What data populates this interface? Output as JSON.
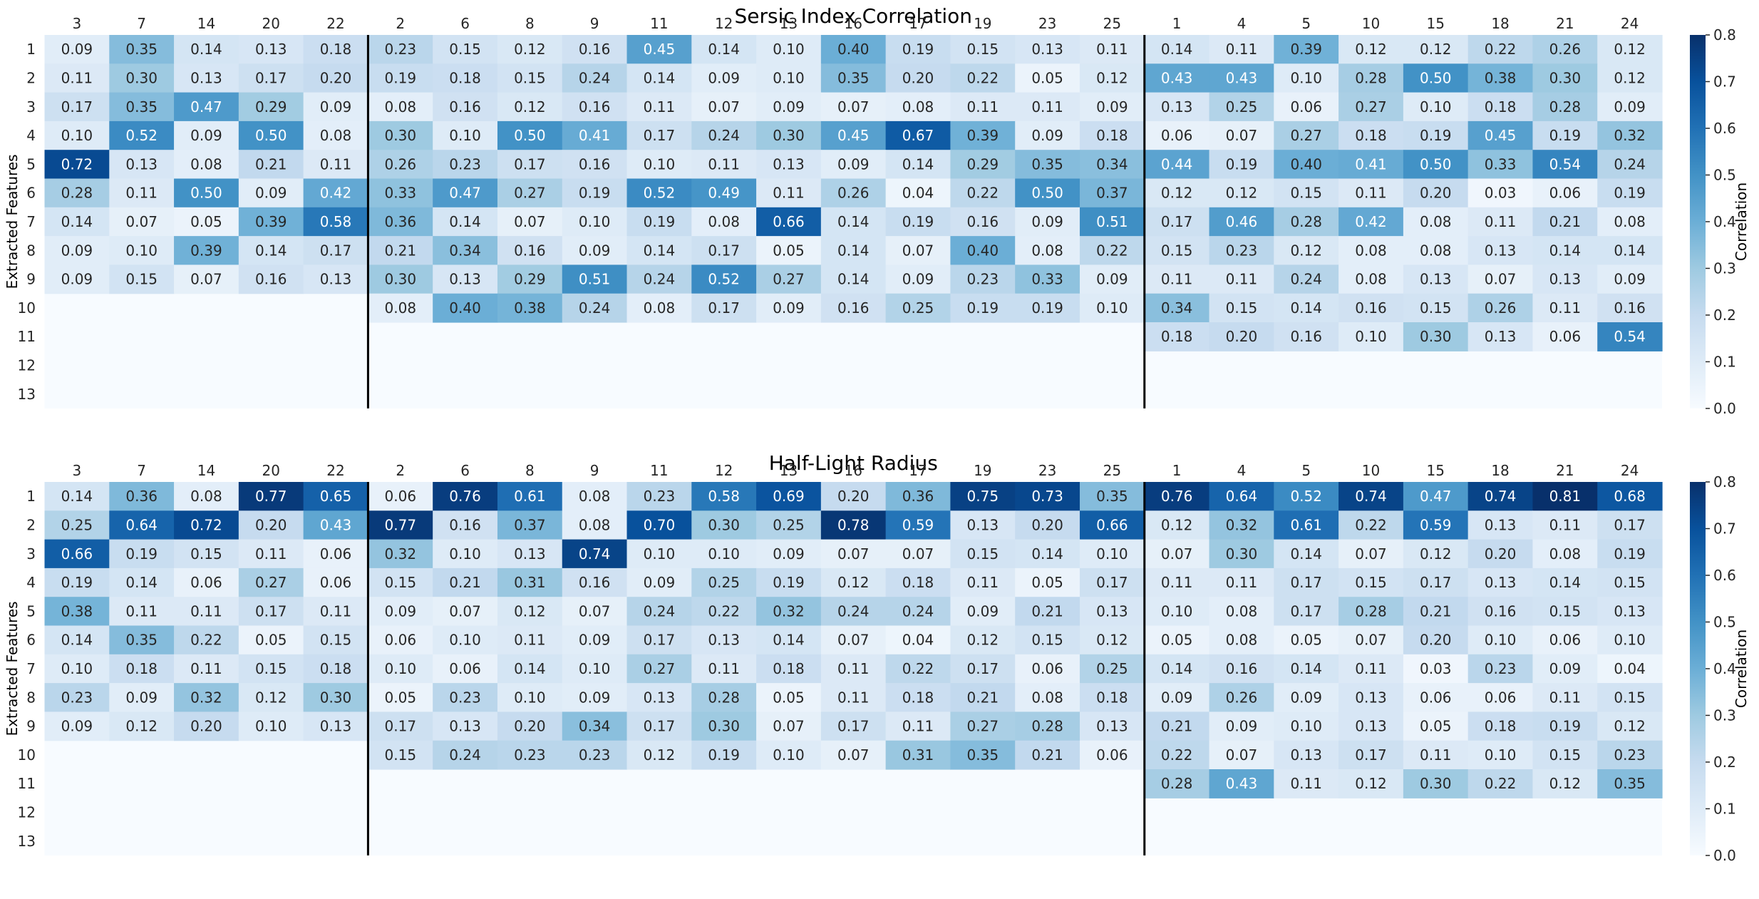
{
  "chart_data": [
    {
      "type": "heatmap",
      "title": "Sersic Index Correlation",
      "ylabel": "Extracted Features",
      "colorbar_label": "Correlation",
      "vmin": 0.0,
      "vmax": 0.8,
      "colorbar_ticks": [
        "0.0",
        "0.1",
        "0.2",
        "0.3",
        "0.4",
        "0.5",
        "0.6",
        "0.7",
        "0.8"
      ],
      "columns": [
        "3",
        "7",
        "14",
        "20",
        "22",
        "2",
        "6",
        "8",
        "9",
        "11",
        "12",
        "13",
        "16",
        "17",
        "19",
        "23",
        "25",
        "1",
        "4",
        "5",
        "10",
        "15",
        "18",
        "21",
        "24"
      ],
      "rows": [
        "1",
        "2",
        "3",
        "4",
        "5",
        "6",
        "7",
        "8",
        "9",
        "10",
        "11",
        "12",
        "13"
      ],
      "group_dividers_after_column": [
        4,
        16
      ],
      "values": [
        [
          0.09,
          0.35,
          0.14,
          0.13,
          0.18,
          0.23,
          0.15,
          0.12,
          0.16,
          0.45,
          0.14,
          0.1,
          0.4,
          0.19,
          0.15,
          0.13,
          0.11,
          0.14,
          0.11,
          0.39,
          0.12,
          0.12,
          0.22,
          0.26,
          0.12
        ],
        [
          0.11,
          0.3,
          0.13,
          0.17,
          0.2,
          0.19,
          0.18,
          0.15,
          0.24,
          0.14,
          0.09,
          0.1,
          0.35,
          0.2,
          0.22,
          0.05,
          0.12,
          0.43,
          0.43,
          0.1,
          0.28,
          0.5,
          0.38,
          0.3,
          0.12
        ],
        [
          0.17,
          0.35,
          0.47,
          0.29,
          0.09,
          0.08,
          0.16,
          0.12,
          0.16,
          0.11,
          0.07,
          0.09,
          0.07,
          0.08,
          0.11,
          0.11,
          0.09,
          0.13,
          0.25,
          0.06,
          0.27,
          0.1,
          0.18,
          0.28,
          0.09
        ],
        [
          0.1,
          0.52,
          0.09,
          0.5,
          0.08,
          0.3,
          0.1,
          0.5,
          0.41,
          0.17,
          0.24,
          0.3,
          0.45,
          0.67,
          0.39,
          0.09,
          0.18,
          0.06,
          0.07,
          0.27,
          0.18,
          0.19,
          0.45,
          0.19,
          0.32
        ],
        [
          0.72,
          0.13,
          0.08,
          0.21,
          0.11,
          0.26,
          0.23,
          0.17,
          0.16,
          0.1,
          0.11,
          0.13,
          0.09,
          0.14,
          0.29,
          0.35,
          0.34,
          0.44,
          0.19,
          0.4,
          0.41,
          0.5,
          0.33,
          0.54,
          0.24
        ],
        [
          0.28,
          0.11,
          0.5,
          0.09,
          0.42,
          0.33,
          0.47,
          0.27,
          0.19,
          0.52,
          0.49,
          0.11,
          0.26,
          0.04,
          0.22,
          0.5,
          0.37,
          0.12,
          0.12,
          0.15,
          0.11,
          0.2,
          0.03,
          0.06,
          0.19
        ],
        [
          0.14,
          0.07,
          0.05,
          0.39,
          0.58,
          0.36,
          0.14,
          0.07,
          0.1,
          0.19,
          0.08,
          0.66,
          0.14,
          0.19,
          0.16,
          0.09,
          0.51,
          0.17,
          0.46,
          0.28,
          0.42,
          0.08,
          0.11,
          0.21,
          0.08
        ],
        [
          0.09,
          0.1,
          0.39,
          0.14,
          0.17,
          0.21,
          0.34,
          0.16,
          0.09,
          0.14,
          0.17,
          0.05,
          0.14,
          0.07,
          0.4,
          0.08,
          0.22,
          0.15,
          0.23,
          0.12,
          0.08,
          0.08,
          0.13,
          0.14,
          0.14
        ],
        [
          0.09,
          0.15,
          0.07,
          0.16,
          0.13,
          0.3,
          0.13,
          0.29,
          0.51,
          0.24,
          0.52,
          0.27,
          0.14,
          0.09,
          0.23,
          0.33,
          0.09,
          0.11,
          0.11,
          0.24,
          0.08,
          0.13,
          0.07,
          0.13,
          0.09
        ],
        [
          null,
          null,
          null,
          null,
          null,
          0.08,
          0.4,
          0.38,
          0.24,
          0.08,
          0.17,
          0.09,
          0.16,
          0.25,
          0.19,
          0.19,
          0.1,
          0.34,
          0.15,
          0.14,
          0.16,
          0.15,
          0.26,
          0.11,
          0.16
        ],
        [
          null,
          null,
          null,
          null,
          null,
          null,
          null,
          null,
          null,
          null,
          null,
          null,
          null,
          null,
          null,
          null,
          null,
          0.18,
          0.2,
          0.16,
          0.1,
          0.3,
          0.13,
          0.06,
          0.54
        ],
        [
          null,
          null,
          null,
          null,
          null,
          null,
          null,
          null,
          null,
          null,
          null,
          null,
          null,
          null,
          null,
          null,
          null,
          null,
          null,
          null,
          null,
          null,
          null,
          null,
          null
        ],
        [
          null,
          null,
          null,
          null,
          null,
          null,
          null,
          null,
          null,
          null,
          null,
          null,
          null,
          null,
          null,
          null,
          null,
          null,
          null,
          null,
          null,
          null,
          null,
          null,
          null
        ]
      ]
    },
    {
      "type": "heatmap",
      "title": "Half-Light Radius",
      "ylabel": "Extracted Features",
      "colorbar_label": "Correlation",
      "vmin": 0.0,
      "vmax": 0.8,
      "colorbar_ticks": [
        "0.0",
        "0.1",
        "0.2",
        "0.3",
        "0.4",
        "0.5",
        "0.6",
        "0.7",
        "0.8"
      ],
      "columns": [
        "3",
        "7",
        "14",
        "20",
        "22",
        "2",
        "6",
        "8",
        "9",
        "11",
        "12",
        "13",
        "16",
        "17",
        "19",
        "23",
        "25",
        "1",
        "4",
        "5",
        "10",
        "15",
        "18",
        "21",
        "24"
      ],
      "rows": [
        "1",
        "2",
        "3",
        "4",
        "5",
        "6",
        "7",
        "8",
        "9",
        "10",
        "11",
        "12",
        "13"
      ],
      "group_dividers_after_column": [
        4,
        16
      ],
      "values": [
        [
          0.14,
          0.36,
          0.08,
          0.77,
          0.65,
          0.06,
          0.76,
          0.61,
          0.08,
          0.23,
          0.58,
          0.69,
          0.2,
          0.36,
          0.75,
          0.73,
          0.35,
          0.76,
          0.64,
          0.52,
          0.74,
          0.47,
          0.74,
          0.81,
          0.68
        ],
        [
          0.25,
          0.64,
          0.72,
          0.2,
          0.43,
          0.77,
          0.16,
          0.37,
          0.08,
          0.7,
          0.3,
          0.25,
          0.78,
          0.59,
          0.13,
          0.2,
          0.66,
          0.12,
          0.32,
          0.61,
          0.22,
          0.59,
          0.13,
          0.11,
          0.17
        ],
        [
          0.66,
          0.19,
          0.15,
          0.11,
          0.06,
          0.32,
          0.1,
          0.13,
          0.74,
          0.1,
          0.1,
          0.09,
          0.07,
          0.07,
          0.15,
          0.14,
          0.1,
          0.07,
          0.3,
          0.14,
          0.07,
          0.12,
          0.2,
          0.08,
          0.19
        ],
        [
          0.19,
          0.14,
          0.06,
          0.27,
          0.06,
          0.15,
          0.21,
          0.31,
          0.16,
          0.09,
          0.25,
          0.19,
          0.12,
          0.18,
          0.11,
          0.05,
          0.17,
          0.11,
          0.11,
          0.17,
          0.15,
          0.17,
          0.13,
          0.14,
          0.15
        ],
        [
          0.38,
          0.11,
          0.11,
          0.17,
          0.11,
          0.09,
          0.07,
          0.12,
          0.07,
          0.24,
          0.22,
          0.32,
          0.24,
          0.24,
          0.09,
          0.21,
          0.13,
          0.1,
          0.08,
          0.17,
          0.28,
          0.21,
          0.16,
          0.15,
          0.13
        ],
        [
          0.14,
          0.35,
          0.22,
          0.05,
          0.15,
          0.06,
          0.1,
          0.11,
          0.09,
          0.17,
          0.13,
          0.14,
          0.07,
          0.04,
          0.12,
          0.15,
          0.12,
          0.05,
          0.08,
          0.05,
          0.07,
          0.2,
          0.1,
          0.06,
          0.1
        ],
        [
          0.1,
          0.18,
          0.11,
          0.15,
          0.18,
          0.1,
          0.06,
          0.14,
          0.1,
          0.27,
          0.11,
          0.18,
          0.11,
          0.22,
          0.17,
          0.06,
          0.25,
          0.14,
          0.16,
          0.14,
          0.11,
          0.03,
          0.23,
          0.09,
          0.04
        ],
        [
          0.23,
          0.09,
          0.32,
          0.12,
          0.3,
          0.05,
          0.23,
          0.1,
          0.09,
          0.13,
          0.28,
          0.05,
          0.11,
          0.18,
          0.21,
          0.08,
          0.18,
          0.09,
          0.26,
          0.09,
          0.13,
          0.06,
          0.06,
          0.11,
          0.15
        ],
        [
          0.09,
          0.12,
          0.2,
          0.1,
          0.13,
          0.17,
          0.13,
          0.2,
          0.34,
          0.17,
          0.3,
          0.07,
          0.17,
          0.11,
          0.27,
          0.28,
          0.13,
          0.21,
          0.09,
          0.1,
          0.13,
          0.05,
          0.18,
          0.19,
          0.12
        ],
        [
          null,
          null,
          null,
          null,
          null,
          0.15,
          0.24,
          0.23,
          0.23,
          0.12,
          0.19,
          0.1,
          0.07,
          0.31,
          0.35,
          0.21,
          0.06,
          0.22,
          0.07,
          0.13,
          0.17,
          0.11,
          0.1,
          0.15,
          0.23
        ],
        [
          null,
          null,
          null,
          null,
          null,
          null,
          null,
          null,
          null,
          null,
          null,
          null,
          null,
          null,
          null,
          null,
          null,
          0.28,
          0.43,
          0.11,
          0.12,
          0.3,
          0.22,
          0.12,
          0.35
        ],
        [
          null,
          null,
          null,
          null,
          null,
          null,
          null,
          null,
          null,
          null,
          null,
          null,
          null,
          null,
          null,
          null,
          null,
          null,
          null,
          null,
          null,
          null,
          null,
          null,
          null
        ],
        [
          null,
          null,
          null,
          null,
          null,
          null,
          null,
          null,
          null,
          null,
          null,
          null,
          null,
          null,
          null,
          null,
          null,
          null,
          null,
          null,
          null,
          null,
          null,
          null,
          null
        ]
      ]
    }
  ]
}
